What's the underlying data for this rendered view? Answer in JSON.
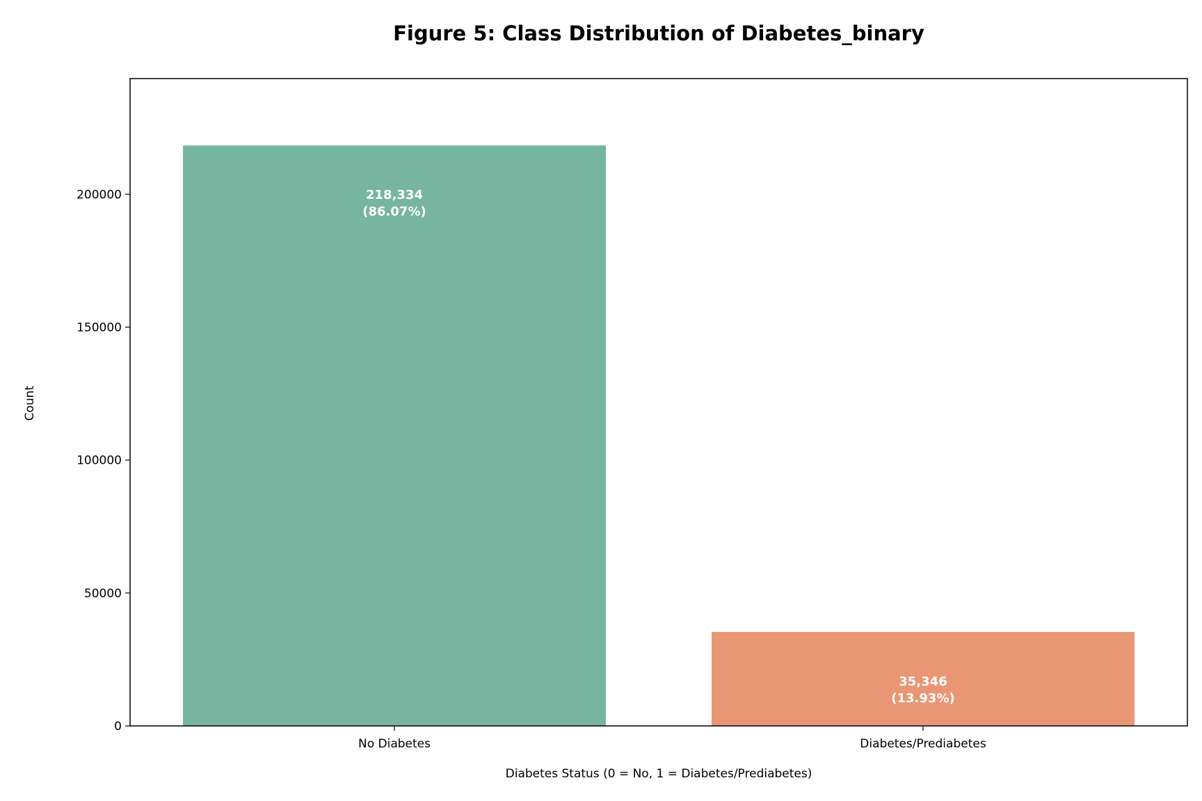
{
  "chart_data": {
    "type": "bar",
    "title": "Figure 5: Class Distribution of Diabetes_binary",
    "xlabel": "Diabetes Status (0 = No, 1 = Diabetes/Prediabetes)",
    "ylabel": "Count",
    "categories": [
      "No Diabetes",
      "Diabetes/Prediabetes"
    ],
    "values": [
      218334,
      35346
    ],
    "data_labels": [
      {
        "count": "218,334",
        "percent": "(86.07%)"
      },
      {
        "count": "35,346",
        "percent": "(13.93%)"
      }
    ],
    "colors": [
      "#76b5a0",
      "#e99675"
    ],
    "label_color": "#ffffff",
    "ylim": [
      0,
      243500
    ],
    "yticks": [
      0,
      50000,
      100000,
      150000,
      200000
    ],
    "grid": false
  }
}
